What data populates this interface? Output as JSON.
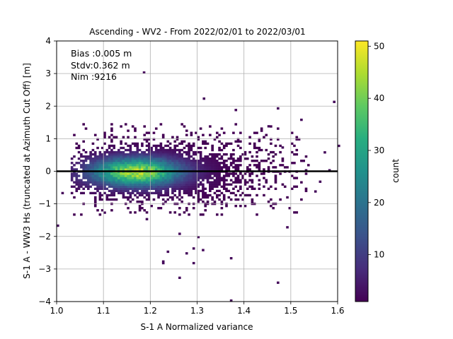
{
  "chart_data": {
    "type": "heatmap",
    "title": "Ascending - WV2 - From 2022/02/01 to 2022/03/01",
    "xlabel": "S-1 A Normalized variance",
    "ylabel": "S-1 A - WW3 Hs (truncated at Azimuth Cut Off) [m]",
    "xlim": [
      1.0,
      1.6
    ],
    "ylim": [
      -4,
      4
    ],
    "xticks": [
      "1.0",
      "1.1",
      "1.2",
      "1.3",
      "1.4",
      "1.5",
      "1.6"
    ],
    "yticks": [
      "−4",
      "−3",
      "−2",
      "−1",
      "0",
      "1",
      "2",
      "3",
      "4"
    ],
    "grid": true,
    "annotations": [
      "Bias :0.005 m",
      "Stdv:0.362 m",
      "Nim :9216"
    ],
    "zero_line": 0,
    "colorbar": {
      "label": "count",
      "range": [
        1,
        51
      ],
      "ticks": [
        "10",
        "20",
        "30",
        "40",
        "50"
      ],
      "colormap": "viridis"
    },
    "density": {
      "peak_x": 1.17,
      "peak_y": -0.02,
      "peak_count": 51,
      "core_x_range": [
        1.05,
        1.42
      ],
      "core_y_range": [
        -1.1,
        1.3
      ]
    },
    "outliers": [
      [
        1.184,
        3.0
      ],
      [
        1.312,
        2.2
      ],
      [
        1.59,
        2.1
      ],
      [
        1.47,
        1.9
      ],
      [
        1.38,
        1.85
      ],
      [
        1.52,
        1.55
      ],
      [
        1.45,
        1.35
      ],
      [
        1.01,
        -0.7
      ],
      [
        1.0,
        -1.7
      ],
      [
        1.1,
        -1.3
      ],
      [
        1.19,
        -1.5
      ],
      [
        1.26,
        -1.95
      ],
      [
        1.3,
        -2.05
      ],
      [
        1.235,
        -2.5
      ],
      [
        1.225,
        -2.8
      ],
      [
        1.225,
        -2.85
      ],
      [
        1.29,
        -2.4
      ],
      [
        1.275,
        -2.55
      ],
      [
        1.31,
        -2.45
      ],
      [
        1.37,
        -2.7
      ],
      [
        1.29,
        -2.85
      ],
      [
        1.26,
        -3.3
      ],
      [
        1.37,
        -4.0
      ],
      [
        1.47,
        -3.45
      ],
      [
        1.49,
        -1.75
      ],
      [
        1.55,
        -0.65
      ],
      [
        1.58,
        0.0
      ],
      [
        1.6,
        0.75
      ],
      [
        1.57,
        0.55
      ],
      [
        1.48,
        0.7
      ],
      [
        1.43,
        0.9
      ],
      [
        1.56,
        -0.35
      ],
      [
        1.53,
        0.0
      ],
      [
        1.44,
        -0.5
      ]
    ]
  }
}
